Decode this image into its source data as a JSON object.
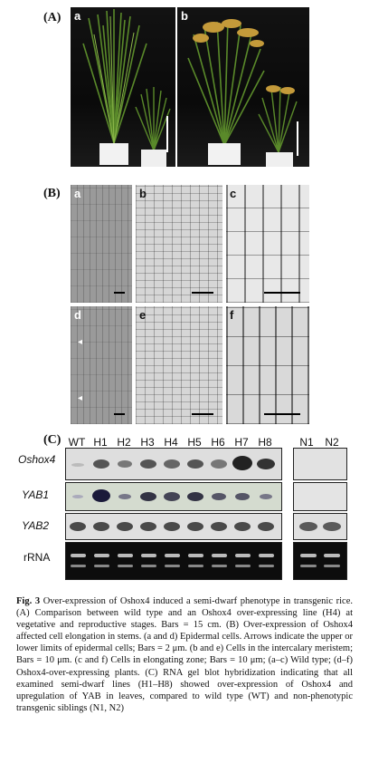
{
  "panels": {
    "A": {
      "label": "(A)",
      "sub": [
        "a",
        "b"
      ]
    },
    "B": {
      "label": "(B)",
      "sub": [
        "a",
        "b",
        "c",
        "d",
        "e",
        "f"
      ]
    },
    "C": {
      "label": "(C)",
      "lanes": [
        "WT",
        "H1",
        "H2",
        "H3",
        "H4",
        "H5",
        "H6",
        "H7",
        "H8"
      ],
      "control_lanes": [
        "N1",
        "N2"
      ],
      "rows": [
        "Oshox4",
        "YAB1",
        "YAB2",
        "rRNA"
      ]
    }
  },
  "caption": {
    "fig": "Fig. 3",
    "text": "Over-expression of Oshox4 induced a semi-dwarf phenotype in transgenic rice. (A) Comparison between wild type and an Oshox4 over-expressing line (H4) at vegetative and reproductive stages. Bars = 15 cm. (B) Over-expression of Oshox4 affected cell elongation in stems. (a and d) Epidermal cells. Arrows indicate the upper or lower limits of epidermal cells; Bars = 2 μm. (b and e) Cells in the intercalary meristem; Bars = 10 μm. (c and f) Cells in elongating zone; Bars = 10 μm; (a–c) Wild type; (d–f) Oshox4-over-expressing plants. (C) RNA gel blot hybridization indicating that all examined semi-dwarf lines (H1–H8) showed over-expression of Oshox4 and upregulation of YAB in leaves, compared to wild type (WT) and non-phenotypic transgenic siblings (N1, N2)"
  }
}
